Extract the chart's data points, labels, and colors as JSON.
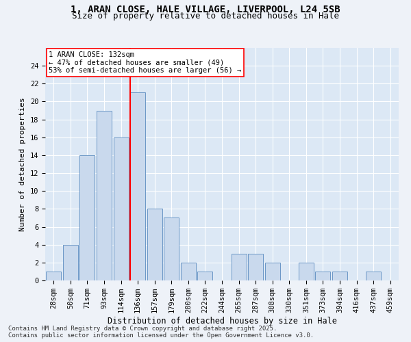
{
  "title_line1": "1, ARAN CLOSE, HALE VILLAGE, LIVERPOOL, L24 5SB",
  "title_line2": "Size of property relative to detached houses in Hale",
  "xlabel": "Distribution of detached houses by size in Hale",
  "ylabel": "Number of detached properties",
  "categories": [
    "28sqm",
    "50sqm",
    "71sqm",
    "93sqm",
    "114sqm",
    "136sqm",
    "157sqm",
    "179sqm",
    "200sqm",
    "222sqm",
    "244sqm",
    "265sqm",
    "287sqm",
    "308sqm",
    "330sqm",
    "351sqm",
    "373sqm",
    "394sqm",
    "416sqm",
    "437sqm",
    "459sqm"
  ],
  "values": [
    1,
    4,
    14,
    19,
    16,
    21,
    8,
    7,
    2,
    1,
    0,
    3,
    3,
    2,
    0,
    2,
    1,
    1,
    0,
    1,
    0
  ],
  "bar_color": "#c9d9ed",
  "bar_edge_color": "#5a8bbf",
  "red_line_index": 5,
  "annotation_title": "1 ARAN CLOSE: 132sqm",
  "annotation_line1": "← 47% of detached houses are smaller (49)",
  "annotation_line2": "53% of semi-detached houses are larger (56) →",
  "ylim": [
    0,
    26
  ],
  "yticks": [
    0,
    2,
    4,
    6,
    8,
    10,
    12,
    14,
    16,
    18,
    20,
    22,
    24
  ],
  "footer_line1": "Contains HM Land Registry data © Crown copyright and database right 2025.",
  "footer_line2": "Contains public sector information licensed under the Open Government Licence v3.0.",
  "background_color": "#eef2f8",
  "plot_bg_color": "#dce8f5",
  "title_fontsize": 10,
  "subtitle_fontsize": 9,
  "xlabel_fontsize": 8.5,
  "ylabel_fontsize": 8,
  "tick_fontsize": 7.5,
  "annotation_fontsize": 7.5,
  "footer_fontsize": 6.5
}
